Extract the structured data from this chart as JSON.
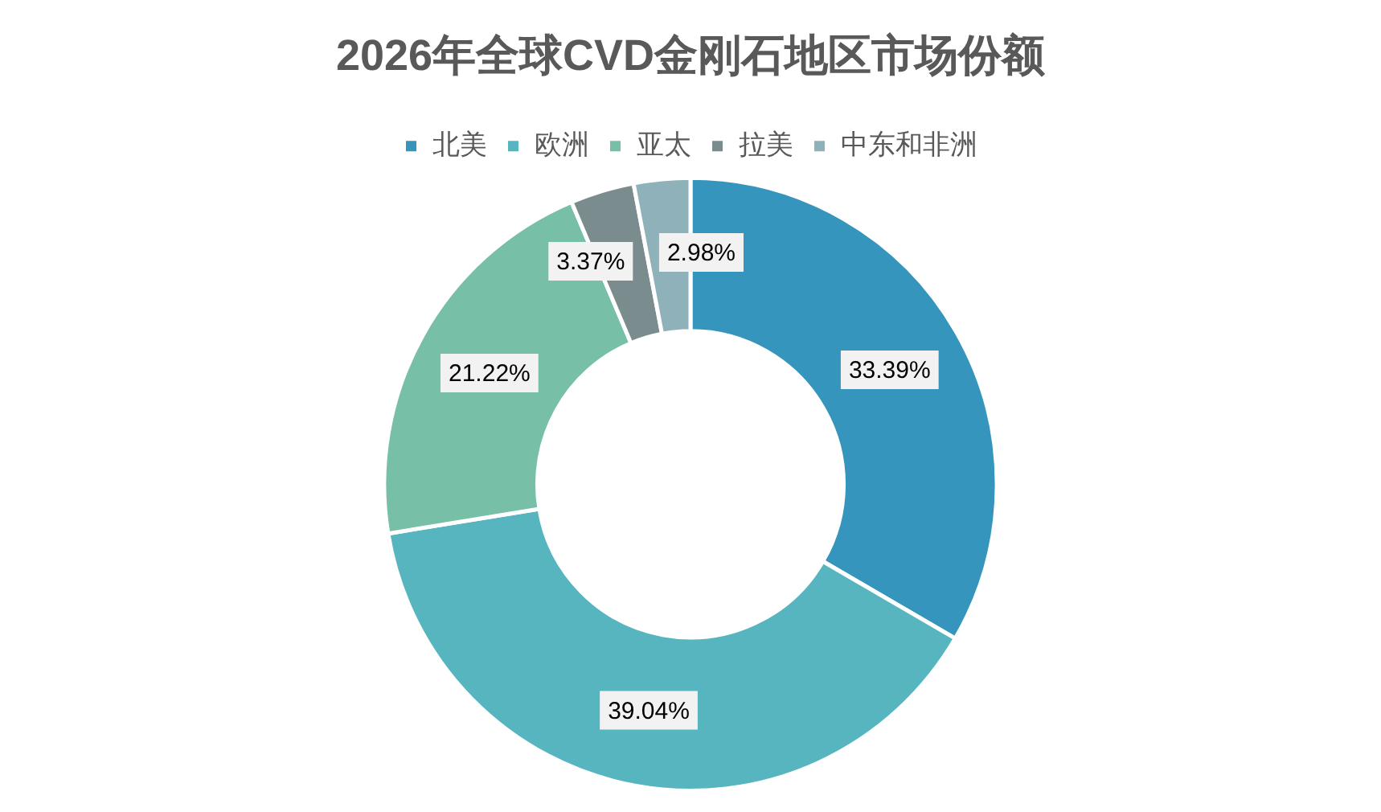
{
  "chart_data": {
    "type": "donut",
    "title": "2026年全球CVD金刚石地区市场份额",
    "categories": [
      "北美",
      "欧洲",
      "亚太",
      "拉美",
      "中东和非洲"
    ],
    "values": [
      33.39,
      39.04,
      21.22,
      3.37,
      2.98
    ],
    "value_labels": [
      "33.39%",
      "39.04%",
      "21.22%",
      "3.37%",
      "2.98%"
    ],
    "colors": [
      "#3595bc",
      "#57b5c0",
      "#77bfa6",
      "#7b8c8e",
      "#8fb1b9"
    ],
    "legend": "top"
  }
}
